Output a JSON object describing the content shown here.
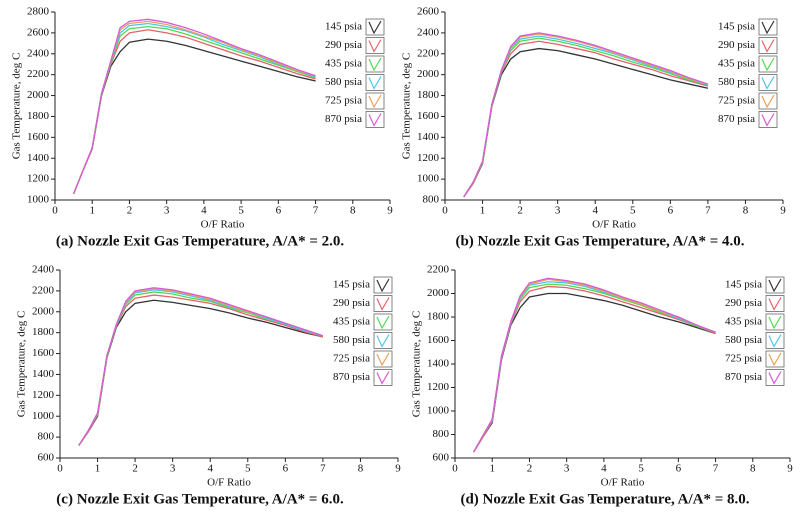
{
  "chart_data": [
    {
      "type": "line",
      "title": "(a) Nozzle Exit Gas Temperature, A/A* = 2.0.",
      "x_label": "O/F Ratio",
      "y_label": "Gas Temperature, deg C",
      "x": [
        0.5,
        0.75,
        1,
        1.25,
        1.5,
        1.75,
        2,
        2.5,
        3,
        3.5,
        4,
        4.5,
        5,
        5.5,
        6,
        6.5,
        7
      ],
      "xlim": [
        0,
        9
      ],
      "xticks": [
        0,
        1,
        2,
        3,
        4,
        5,
        6,
        7,
        8,
        9
      ],
      "ylim": [
        1000,
        2800
      ],
      "yticks": [
        1000,
        1200,
        1400,
        1600,
        1800,
        2000,
        2200,
        2400,
        2600,
        2800
      ],
      "grid": false,
      "legend": "upper right",
      "series": [
        {
          "name": "145 psia",
          "color": "#333333",
          "values": [
            1060,
            1280,
            1490,
            2000,
            2280,
            2420,
            2510,
            2540,
            2520,
            2480,
            2430,
            2380,
            2330,
            2280,
            2230,
            2180,
            2140
          ]
        },
        {
          "name": "290 psia",
          "color": "#e8606a",
          "values": [
            1060,
            1280,
            1490,
            2010,
            2300,
            2520,
            2600,
            2630,
            2600,
            2560,
            2500,
            2440,
            2380,
            2330,
            2270,
            2210,
            2160
          ]
        },
        {
          "name": "435 psia",
          "color": "#52d852",
          "values": [
            1060,
            1280,
            1500,
            2010,
            2310,
            2570,
            2640,
            2660,
            2640,
            2590,
            2530,
            2470,
            2410,
            2350,
            2290,
            2230,
            2170
          ]
        },
        {
          "name": "580 psia",
          "color": "#4cc4ec",
          "values": [
            1060,
            1280,
            1500,
            2020,
            2320,
            2600,
            2670,
            2690,
            2660,
            2620,
            2560,
            2490,
            2430,
            2370,
            2300,
            2240,
            2180
          ]
        },
        {
          "name": "725 psia",
          "color": "#e8a05a",
          "values": [
            1060,
            1280,
            1500,
            2020,
            2330,
            2630,
            2690,
            2710,
            2680,
            2630,
            2570,
            2510,
            2440,
            2380,
            2310,
            2240,
            2190
          ]
        },
        {
          "name": "870 psia",
          "color": "#d85ad8",
          "values": [
            1060,
            1280,
            1500,
            2020,
            2330,
            2650,
            2710,
            2730,
            2700,
            2650,
            2590,
            2520,
            2450,
            2390,
            2320,
            2250,
            2190
          ]
        }
      ]
    },
    {
      "type": "line",
      "title": "(b) Nozzle Exit Gas Temperature, A/A* = 4.0.",
      "x_label": "O/F Ratio",
      "y_label": "Gas Temperature, deg C",
      "x": [
        0.5,
        0.75,
        1,
        1.25,
        1.5,
        1.75,
        2,
        2.5,
        3,
        3.5,
        4,
        4.5,
        5,
        5.5,
        6,
        6.5,
        7
      ],
      "xlim": [
        0,
        9
      ],
      "xticks": [
        0,
        1,
        2,
        3,
        4,
        5,
        6,
        7,
        8,
        9
      ],
      "ylim": [
        800,
        2600
      ],
      "yticks": [
        800,
        1000,
        1200,
        1400,
        1600,
        1800,
        2000,
        2200,
        2400,
        2600
      ],
      "grid": false,
      "legend": "upper right",
      "series": [
        {
          "name": "145 psia",
          "color": "#333333",
          "values": [
            830,
            960,
            1150,
            1700,
            2000,
            2150,
            2220,
            2250,
            2230,
            2190,
            2150,
            2100,
            2050,
            2000,
            1950,
            1910,
            1870
          ]
        },
        {
          "name": "290 psia",
          "color": "#e8606a",
          "values": [
            830,
            960,
            1160,
            1710,
            2020,
            2200,
            2290,
            2320,
            2290,
            2250,
            2210,
            2150,
            2100,
            2050,
            1990,
            1940,
            1890
          ]
        },
        {
          "name": "435 psia",
          "color": "#52d852",
          "values": [
            830,
            970,
            1160,
            1710,
            2030,
            2230,
            2320,
            2350,
            2320,
            2280,
            2230,
            2180,
            2120,
            2070,
            2010,
            1950,
            1900
          ]
        },
        {
          "name": "580 psia",
          "color": "#4cc4ec",
          "values": [
            830,
            970,
            1170,
            1720,
            2030,
            2250,
            2340,
            2370,
            2340,
            2300,
            2250,
            2200,
            2140,
            2080,
            2020,
            1960,
            1900
          ]
        },
        {
          "name": "725 psia",
          "color": "#e8a05a",
          "values": [
            830,
            970,
            1170,
            1720,
            2040,
            2260,
            2360,
            2390,
            2360,
            2320,
            2270,
            2210,
            2150,
            2090,
            2030,
            1960,
            1910
          ]
        },
        {
          "name": "870 psia",
          "color": "#d85ad8",
          "values": [
            830,
            970,
            1170,
            1720,
            2040,
            2270,
            2370,
            2400,
            2370,
            2330,
            2280,
            2220,
            2160,
            2100,
            2040,
            1970,
            1910
          ]
        }
      ]
    },
    {
      "type": "line",
      "title": "(c) Nozzle Exit Gas Temperature, A/A* = 6.0.",
      "x_label": "O/F Ratio",
      "y_label": "Gas Temperature, deg C",
      "x": [
        0.5,
        0.75,
        1,
        1.25,
        1.5,
        1.75,
        2,
        2.5,
        3,
        3.5,
        4,
        4.5,
        5,
        5.5,
        6,
        6.5,
        7
      ],
      "xlim": [
        0,
        9
      ],
      "xticks": [
        0,
        1,
        2,
        3,
        4,
        5,
        6,
        7,
        8,
        9
      ],
      "ylim": [
        600,
        2400
      ],
      "yticks": [
        600,
        800,
        1000,
        1200,
        1400,
        1600,
        1800,
        2000,
        2200,
        2400
      ],
      "grid": false,
      "legend": "upper right",
      "series": [
        {
          "name": "145 psia",
          "color": "#333333",
          "values": [
            720,
            850,
            1000,
            1560,
            1850,
            2000,
            2080,
            2110,
            2090,
            2060,
            2030,
            1990,
            1940,
            1900,
            1850,
            1800,
            1760
          ]
        },
        {
          "name": "290 psia",
          "color": "#e8606a",
          "values": [
            720,
            850,
            1010,
            1570,
            1860,
            2050,
            2130,
            2160,
            2140,
            2110,
            2080,
            2030,
            1970,
            1920,
            1870,
            1810,
            1760
          ]
        },
        {
          "name": "435 psia",
          "color": "#52d852",
          "values": [
            720,
            860,
            1020,
            1570,
            1870,
            2070,
            2160,
            2190,
            2170,
            2130,
            2100,
            2040,
            1990,
            1930,
            1880,
            1820,
            1770
          ]
        },
        {
          "name": "580 psia",
          "color": "#4cc4ec",
          "values": [
            720,
            860,
            1020,
            1580,
            1870,
            2080,
            2180,
            2210,
            2190,
            2150,
            2110,
            2050,
            2000,
            1940,
            1880,
            1820,
            1770
          ]
        },
        {
          "name": "725 psia",
          "color": "#e8a05a",
          "values": [
            720,
            860,
            1030,
            1580,
            1880,
            2090,
            2190,
            2220,
            2200,
            2160,
            2120,
            2060,
            2000,
            1950,
            1890,
            1830,
            1770
          ]
        },
        {
          "name": "870 psia",
          "color": "#d85ad8",
          "values": [
            720,
            860,
            1030,
            1580,
            1880,
            2100,
            2200,
            2230,
            2210,
            2170,
            2130,
            2070,
            2010,
            1950,
            1890,
            1830,
            1770
          ]
        }
      ]
    },
    {
      "type": "line",
      "title": "(d) Nozzle Exit Gas Temperature, A/A* = 8.0.",
      "x_label": "O/F Ratio",
      "y_label": "Gas Temperature, deg C",
      "x": [
        0.5,
        0.75,
        1,
        1.25,
        1.5,
        1.75,
        2,
        2.5,
        3,
        3.5,
        4,
        4.5,
        5,
        5.5,
        6,
        6.5,
        7
      ],
      "xlim": [
        0,
        9
      ],
      "xticks": [
        0,
        1,
        2,
        3,
        4,
        5,
        6,
        7,
        8,
        9
      ],
      "ylim": [
        600,
        2200
      ],
      "yticks": [
        600,
        800,
        1000,
        1200,
        1400,
        1600,
        1800,
        2000,
        2200
      ],
      "grid": false,
      "legend": "upper right",
      "series": [
        {
          "name": "145 psia",
          "color": "#333333",
          "values": [
            650,
            780,
            900,
            1440,
            1730,
            1880,
            1970,
            2000,
            2000,
            1970,
            1940,
            1900,
            1850,
            1800,
            1760,
            1710,
            1660
          ]
        },
        {
          "name": "290 psia",
          "color": "#e8606a",
          "values": [
            650,
            780,
            910,
            1450,
            1740,
            1930,
            2020,
            2060,
            2050,
            2020,
            1980,
            1930,
            1880,
            1830,
            1780,
            1720,
            1660
          ]
        },
        {
          "name": "435 psia",
          "color": "#52d852",
          "values": [
            650,
            790,
            920,
            1460,
            1750,
            1950,
            2050,
            2080,
            2070,
            2040,
            2000,
            1950,
            1900,
            1840,
            1790,
            1720,
            1670
          ]
        },
        {
          "name": "580 psia",
          "color": "#4cc4ec",
          "values": [
            650,
            790,
            920,
            1460,
            1750,
            1960,
            2070,
            2100,
            2090,
            2060,
            2010,
            1960,
            1910,
            1850,
            1790,
            1730,
            1670
          ]
        },
        {
          "name": "725 psia",
          "color": "#e8a05a",
          "values": [
            650,
            790,
            930,
            1470,
            1760,
            1970,
            2080,
            2120,
            2100,
            2070,
            2020,
            1960,
            1910,
            1850,
            1800,
            1730,
            1670
          ]
        },
        {
          "name": "870 psia",
          "color": "#d85ad8",
          "values": [
            650,
            790,
            930,
            1470,
            1760,
            1980,
            2090,
            2130,
            2110,
            2080,
            2030,
            1970,
            1920,
            1860,
            1800,
            1730,
            1670
          ]
        }
      ]
    }
  ]
}
